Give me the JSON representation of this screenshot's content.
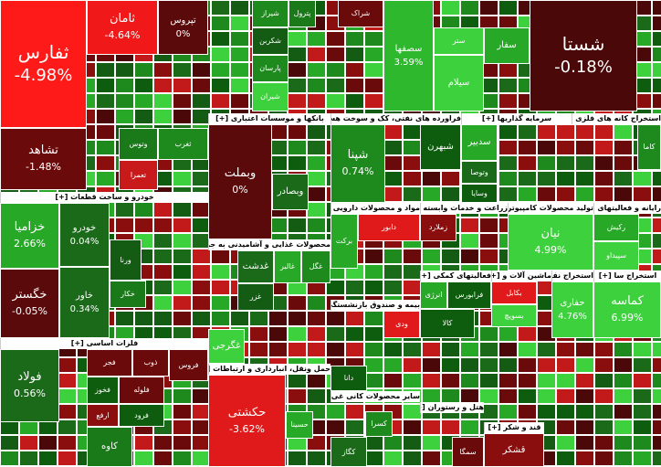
{
  "tiles": [
    {
      "label": "ثفارس",
      "change": "-4.98%"
    },
    {
      "label": "تشاهد",
      "change": "-1.48%"
    },
    {
      "label": "ثامان",
      "change": "-4.64%"
    },
    {
      "label": "تپروس",
      "change": "0%"
    },
    {
      "label": "وتوس"
    },
    {
      "label": "تعمرا"
    },
    {
      "label": "ثغرب"
    },
    {
      "label": "شیراز"
    },
    {
      "label": "پترول"
    },
    {
      "label": "شراک"
    },
    {
      "label": "شکربن"
    },
    {
      "label": "پارسان"
    },
    {
      "label": "شیران"
    },
    {
      "label": "سصفها",
      "change": "3.59%"
    },
    {
      "label": "ستر"
    },
    {
      "label": "سیلام"
    },
    {
      "label": "سفار"
    },
    {
      "label": "شستا",
      "change": "-0.18%"
    }
  ],
  "sectors": [
    {
      "title": "بانکها و موسسات اعتباری [+]",
      "tiles": [
        {
          "label": "وبملت",
          "change": "0%"
        },
        {
          "label": "وبصادر"
        }
      ]
    },
    {
      "title": "فراورده های نفتی، کک و سوخت هسته ای [+]",
      "tiles": [
        {
          "label": "شپنا",
          "change": "0.74%"
        },
        {
          "label": "شبهرن"
        }
      ]
    },
    {
      "title": "سرمایه گذاریها [+]",
      "tiles": [
        {
          "label": "سدبیر"
        },
        {
          "label": "وتوصا"
        },
        {
          "label": "وسایا"
        }
      ]
    },
    {
      "title": "استخراج کانه های فلزی [+]",
      "tiles": [
        {
          "label": "کاما"
        }
      ]
    },
    {
      "title": "خودرو و ساخت قطعات [+]",
      "tiles": [
        {
          "label": "خزامیا",
          "change": "2.66%"
        },
        {
          "label": "خگستر",
          "change": "-0.05%"
        },
        {
          "label": "خودرو",
          "change": "0.04%"
        },
        {
          "label": "خاور",
          "change": "0.34%"
        },
        {
          "label": "ورنا"
        },
        {
          "label": "خکار"
        }
      ]
    },
    {
      "title": "فلزات اساسی [+]",
      "tiles": [
        {
          "label": "فولاد",
          "change": "0.56%"
        },
        {
          "label": "فجر"
        },
        {
          "label": "ذوب"
        },
        {
          "label": "فروس"
        },
        {
          "label": "فخوز"
        },
        {
          "label": "فلوله"
        },
        {
          "label": "ارفع"
        },
        {
          "label": "فرود"
        },
        {
          "label": "کاوه"
        }
      ]
    },
    {
      "title": "محصولات غذایی و آشامیدنی به جز قند [+]",
      "tiles": [
        {
          "label": "غدشت"
        },
        {
          "label": "غالبر"
        },
        {
          "label": "غگل"
        },
        {
          "label": "غزر"
        },
        {
          "label": "غگرجی"
        }
      ]
    },
    {
      "title": "حمل ونقل، انبارداری و ارتباطات [+]",
      "tiles": [
        {
          "label": "حکشتی",
          "change": "-3.62%"
        },
        {
          "label": "حسینا"
        }
      ]
    },
    {
      "title": "مواد و محصولات دارویی [+]",
      "tiles": [
        {
          "label": "برکت"
        },
        {
          "label": "دابور"
        }
      ]
    },
    {
      "title": "زراعت و خدمات وابسته [+]",
      "tiles": [
        {
          "label": "زملارد"
        }
      ]
    },
    {
      "title": "تولید محصولات کامپیوتر [+]",
      "tiles": [
        {
          "label": "نیان",
          "change": "4.99%"
        }
      ]
    },
    {
      "title": "رایانه و فعالیتهای [+]",
      "tiles": [
        {
          "label": "رکیش"
        },
        {
          "label": "سپیداو"
        }
      ]
    },
    {
      "title": "بیمه و صندوق بازنشستگی [+]",
      "tiles": [
        {
          "label": "ودی"
        },
        {
          "label": "دانا"
        }
      ]
    },
    {
      "title": "فعالیتهای کمکی [+]",
      "tiles": [
        {
          "label": "انرژی"
        },
        {
          "label": "فرابورس"
        },
        {
          "label": "کالا"
        }
      ]
    },
    {
      "title": "ماشین آلات و [+]",
      "tiles": [
        {
          "label": "بکابل"
        },
        {
          "label": "بسویچ"
        }
      ]
    },
    {
      "title": "استخراج نف [+]",
      "tiles": [
        {
          "label": "حفاری",
          "change": "4.76%"
        }
      ]
    },
    {
      "title": "استخراج سا [+]",
      "tiles": [
        {
          "label": "کماسه",
          "change": "6.99%"
        }
      ]
    },
    {
      "title": "سایر محصولات کانی غی [+]",
      "tiles": [
        {
          "label": "کسرا"
        },
        {
          "label": "کگاز"
        }
      ]
    },
    {
      "title": "هتل و رستوران [+]",
      "tiles": [
        {
          "label": "سمگا"
        }
      ]
    },
    {
      "title": "قند و شکر [+]",
      "tiles": [
        {
          "label": "قشکر"
        }
      ]
    }
  ]
}
